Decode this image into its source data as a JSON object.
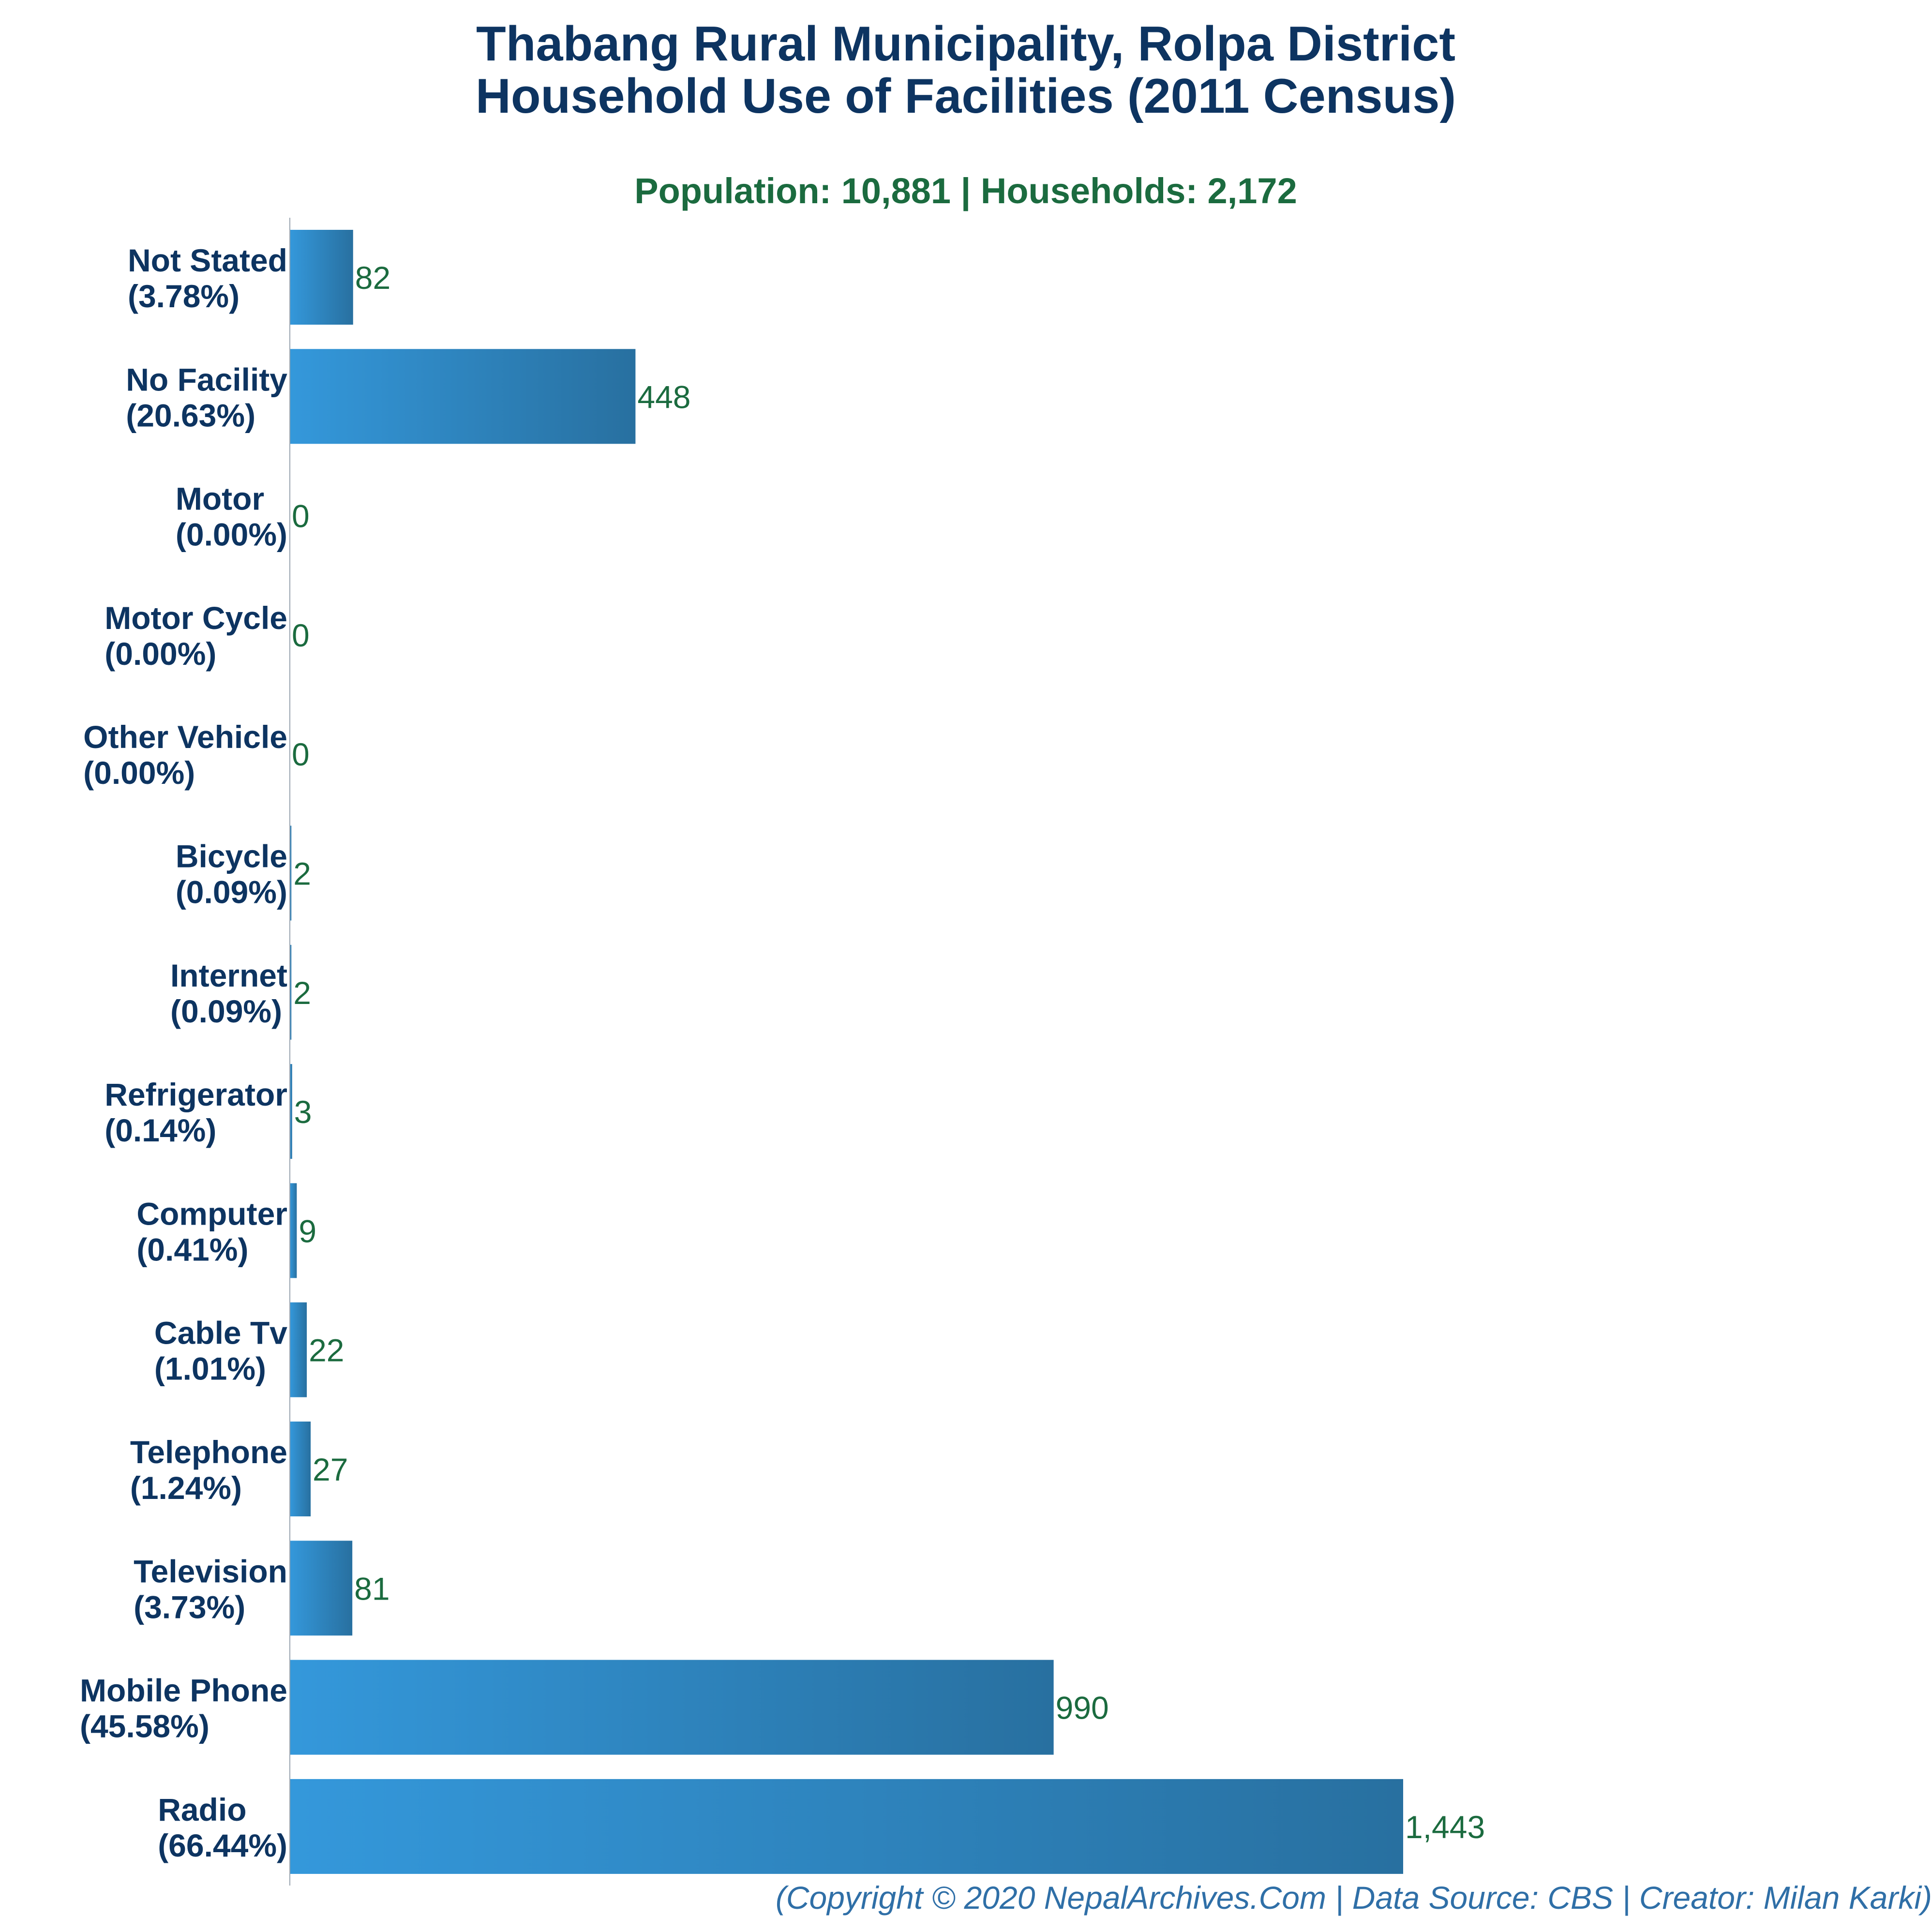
{
  "title_line1": "Thabang Rural Municipality, Rolpa District",
  "title_line2": "Household Use of Facilities (2011 Census)",
  "subtitle": "Population: 10,881 | Households: 2,172",
  "footer": "(Copyright © 2020 NepalArchives.Com | Data Source: CBS | Creator: Milan Karki)",
  "colors": {
    "title": "#0d3461",
    "subtitle": "#1b6b3f",
    "value_label": "#1b6b3f",
    "bar_light": "#3498db",
    "bar_dark": "#2870a0",
    "footer": "#2f6fa7",
    "axis": "#9aa5b1"
  },
  "chart_data": {
    "type": "bar",
    "orientation": "horizontal",
    "categories": [
      "Not Stated",
      "No Facility",
      "Motor",
      "Motor Cycle",
      "Other Vehicle",
      "Bicycle",
      "Internet",
      "Refrigerator",
      "Computer",
      "Cable Tv",
      "Telephone",
      "Television",
      "Mobile Phone",
      "Radio"
    ],
    "percent_labels": [
      "(3.78%)",
      "(20.63%)",
      "(0.00%)",
      "(0.00%)",
      "(0.00%)",
      "(0.09%)",
      "(0.09%)",
      "(0.14%)",
      "(0.41%)",
      "(1.01%)",
      "(1.24%)",
      "(3.73%)",
      "(45.58%)",
      "(66.44%)"
    ],
    "values": [
      82,
      448,
      0,
      0,
      0,
      2,
      2,
      3,
      9,
      22,
      27,
      81,
      990,
      1443
    ],
    "value_labels": [
      "82",
      "448",
      "0",
      "0",
      "0",
      "2",
      "2",
      "3",
      "9",
      "22",
      "27",
      "81",
      "990",
      "1,443"
    ],
    "xlim": [
      0,
      1443
    ],
    "grid": false,
    "legend": "none"
  }
}
